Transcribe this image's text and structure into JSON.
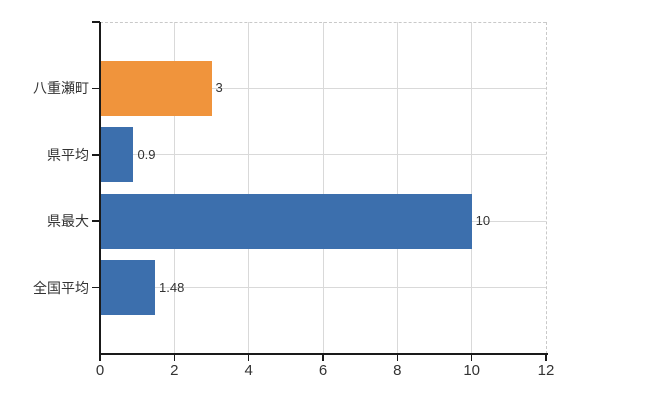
{
  "chart_data": {
    "type": "bar",
    "orientation": "horizontal",
    "title": "",
    "xlabel": "",
    "ylabel": "",
    "categories": [
      "八重瀬町",
      "県平均",
      "県最大",
      "全国平均"
    ],
    "values": [
      3,
      0.9,
      10,
      1.48
    ],
    "value_labels": [
      "3",
      "0.9",
      "10",
      "1.48"
    ],
    "series_colors": [
      "#f0943c",
      "#3c6fad",
      "#3c6fad",
      "#3c6fad"
    ],
    "x_ticks": [
      0,
      2,
      4,
      6,
      8,
      10,
      12
    ],
    "x_tick_labels": [
      "0",
      "2",
      "4",
      "6",
      "8",
      "10",
      "12"
    ],
    "xlim": [
      0,
      12
    ],
    "grid": true,
    "legend": false
  },
  "colors": {
    "highlight_bar": "#f0943c",
    "default_bar": "#3c6fad",
    "axis": "#1a1a1a",
    "gridline": "#d9d9d9",
    "plot_border_dashed": "#c9c9c9",
    "text": "#333333",
    "background": "#ffffff"
  }
}
